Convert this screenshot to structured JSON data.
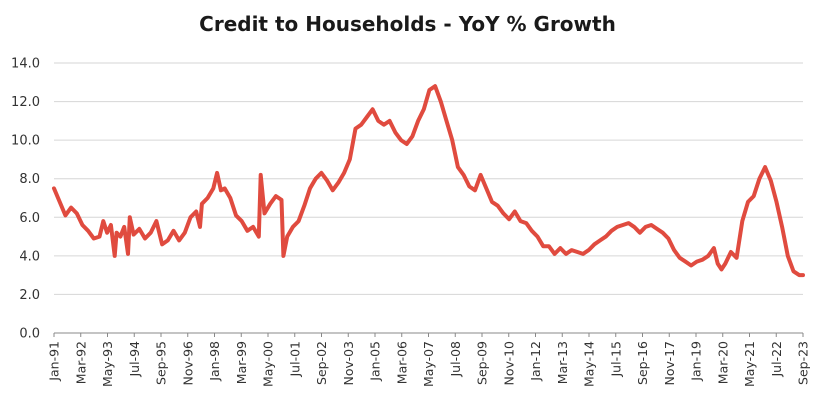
{
  "chart_data": {
    "type": "line",
    "title": "Credit to Households - YoY % Growth",
    "xlabel": "",
    "ylabel": "",
    "ylim": [
      0,
      14
    ],
    "y_ticks": [
      "0.0",
      "2.0",
      "4.0",
      "6.0",
      "8.0",
      "10.0",
      "12.0",
      "14.0"
    ],
    "x_tick_labels": [
      "Jan-91",
      "Mar-92",
      "May-93",
      "Jul-94",
      "Sep-95",
      "Nov-96",
      "Jan-98",
      "Mar-99",
      "May-00",
      "Jul-01",
      "Sep-02",
      "Nov-03",
      "Jan-05",
      "Mar-06",
      "May-07",
      "Jul-08",
      "Sep-09",
      "Nov-10",
      "Jan-12",
      "Mar-13",
      "May-14",
      "Jul-15",
      "Sep-16",
      "Nov-17",
      "Jan-19",
      "Mar-20",
      "May-21",
      "Jul-22",
      "Sep-23"
    ],
    "grid": true,
    "line_color": "#e04b3f",
    "x_start": "1991-01",
    "x_end": "2023-12",
    "series": [
      {
        "points": [
          [
            "1991-01",
            7.5
          ],
          [
            "1991-04",
            6.8
          ],
          [
            "1991-07",
            6.1
          ],
          [
            "1991-10",
            6.5
          ],
          [
            "1992-01",
            6.2
          ],
          [
            "1992-04",
            5.6
          ],
          [
            "1992-07",
            5.3
          ],
          [
            "1992-10",
            4.9
          ],
          [
            "1993-01",
            5.0
          ],
          [
            "1993-03",
            5.8
          ],
          [
            "1993-05",
            5.2
          ],
          [
            "1993-07",
            5.6
          ],
          [
            "1993-09",
            4.0
          ],
          [
            "1993-10",
            5.2
          ],
          [
            "1993-12",
            5.0
          ],
          [
            "1994-02",
            5.5
          ],
          [
            "1994-04",
            4.1
          ],
          [
            "1994-05",
            6.0
          ],
          [
            "1994-07",
            5.1
          ],
          [
            "1994-10",
            5.4
          ],
          [
            "1995-01",
            4.9
          ],
          [
            "1995-04",
            5.2
          ],
          [
            "1995-07",
            5.8
          ],
          [
            "1995-10",
            4.6
          ],
          [
            "1996-01",
            4.8
          ],
          [
            "1996-04",
            5.3
          ],
          [
            "1996-07",
            4.8
          ],
          [
            "1996-10",
            5.2
          ],
          [
            "1997-01",
            6.0
          ],
          [
            "1997-04",
            6.3
          ],
          [
            "1997-06",
            5.5
          ],
          [
            "1997-07",
            6.7
          ],
          [
            "1997-10",
            7.0
          ],
          [
            "1998-01",
            7.5
          ],
          [
            "1998-03",
            8.3
          ],
          [
            "1998-05",
            7.4
          ],
          [
            "1998-07",
            7.5
          ],
          [
            "1998-10",
            7.0
          ],
          [
            "1999-01",
            6.1
          ],
          [
            "1999-04",
            5.8
          ],
          [
            "1999-07",
            5.3
          ],
          [
            "1999-10",
            5.5
          ],
          [
            "2000-01",
            5.0
          ],
          [
            "2000-02",
            8.2
          ],
          [
            "2000-04",
            6.2
          ],
          [
            "2000-07",
            6.7
          ],
          [
            "2000-10",
            7.1
          ],
          [
            "2001-01",
            6.9
          ],
          [
            "2001-02",
            4.0
          ],
          [
            "2001-04",
            5.0
          ],
          [
            "2001-07",
            5.5
          ],
          [
            "2001-10",
            5.8
          ],
          [
            "2002-01",
            6.6
          ],
          [
            "2002-04",
            7.5
          ],
          [
            "2002-07",
            8.0
          ],
          [
            "2002-10",
            8.3
          ],
          [
            "2003-01",
            7.9
          ],
          [
            "2003-04",
            7.4
          ],
          [
            "2003-07",
            7.8
          ],
          [
            "2003-10",
            8.3
          ],
          [
            "2004-01",
            9.0
          ],
          [
            "2004-04",
            10.6
          ],
          [
            "2004-07",
            10.8
          ],
          [
            "2004-10",
            11.2
          ],
          [
            "2005-01",
            11.6
          ],
          [
            "2005-04",
            11.0
          ],
          [
            "2005-07",
            10.8
          ],
          [
            "2005-10",
            11.0
          ],
          [
            "2006-01",
            10.4
          ],
          [
            "2006-04",
            10.0
          ],
          [
            "2006-07",
            9.8
          ],
          [
            "2006-10",
            10.2
          ],
          [
            "2007-01",
            11.0
          ],
          [
            "2007-04",
            11.6
          ],
          [
            "2007-07",
            12.6
          ],
          [
            "2007-10",
            12.8
          ],
          [
            "2008-01",
            12.0
          ],
          [
            "2008-04",
            11.0
          ],
          [
            "2008-07",
            10.0
          ],
          [
            "2008-10",
            8.6
          ],
          [
            "2009-01",
            8.2
          ],
          [
            "2009-04",
            7.6
          ],
          [
            "2009-07",
            7.4
          ],
          [
            "2009-10",
            8.2
          ],
          [
            "2010-01",
            7.5
          ],
          [
            "2010-04",
            6.8
          ],
          [
            "2010-07",
            6.6
          ],
          [
            "2010-10",
            6.2
          ],
          [
            "2011-01",
            5.9
          ],
          [
            "2011-04",
            6.3
          ],
          [
            "2011-07",
            5.8
          ],
          [
            "2011-10",
            5.7
          ],
          [
            "2012-01",
            5.3
          ],
          [
            "2012-04",
            5.0
          ],
          [
            "2012-07",
            4.5
          ],
          [
            "2012-10",
            4.5
          ],
          [
            "2013-01",
            4.1
          ],
          [
            "2013-04",
            4.4
          ],
          [
            "2013-07",
            4.1
          ],
          [
            "2013-10",
            4.3
          ],
          [
            "2014-01",
            4.2
          ],
          [
            "2014-04",
            4.1
          ],
          [
            "2014-07",
            4.3
          ],
          [
            "2014-10",
            4.6
          ],
          [
            "2015-01",
            4.8
          ],
          [
            "2015-04",
            5.0
          ],
          [
            "2015-07",
            5.3
          ],
          [
            "2015-10",
            5.5
          ],
          [
            "2016-01",
            5.6
          ],
          [
            "2016-04",
            5.7
          ],
          [
            "2016-07",
            5.5
          ],
          [
            "2016-10",
            5.2
          ],
          [
            "2017-01",
            5.5
          ],
          [
            "2017-04",
            5.6
          ],
          [
            "2017-07",
            5.4
          ],
          [
            "2017-10",
            5.2
          ],
          [
            "2018-01",
            4.9
          ],
          [
            "2018-04",
            4.3
          ],
          [
            "2018-07",
            3.9
          ],
          [
            "2018-10",
            3.7
          ],
          [
            "2019-01",
            3.5
          ],
          [
            "2019-04",
            3.7
          ],
          [
            "2019-07",
            3.8
          ],
          [
            "2019-10",
            4.0
          ],
          [
            "2020-01",
            4.4
          ],
          [
            "2020-03",
            3.6
          ],
          [
            "2020-05",
            3.3
          ],
          [
            "2020-07",
            3.6
          ],
          [
            "2020-10",
            4.2
          ],
          [
            "2021-01",
            3.9
          ],
          [
            "2021-04",
            5.8
          ],
          [
            "2021-07",
            6.8
          ],
          [
            "2021-10",
            7.1
          ],
          [
            "2022-01",
            8.0
          ],
          [
            "2022-04",
            8.6
          ],
          [
            "2022-07",
            7.9
          ],
          [
            "2022-10",
            6.8
          ],
          [
            "2023-01",
            5.5
          ],
          [
            "2023-04",
            4.0
          ],
          [
            "2023-07",
            3.2
          ],
          [
            "2023-10",
            3.0
          ],
          [
            "2023-12",
            3.0
          ]
        ]
      }
    ]
  }
}
